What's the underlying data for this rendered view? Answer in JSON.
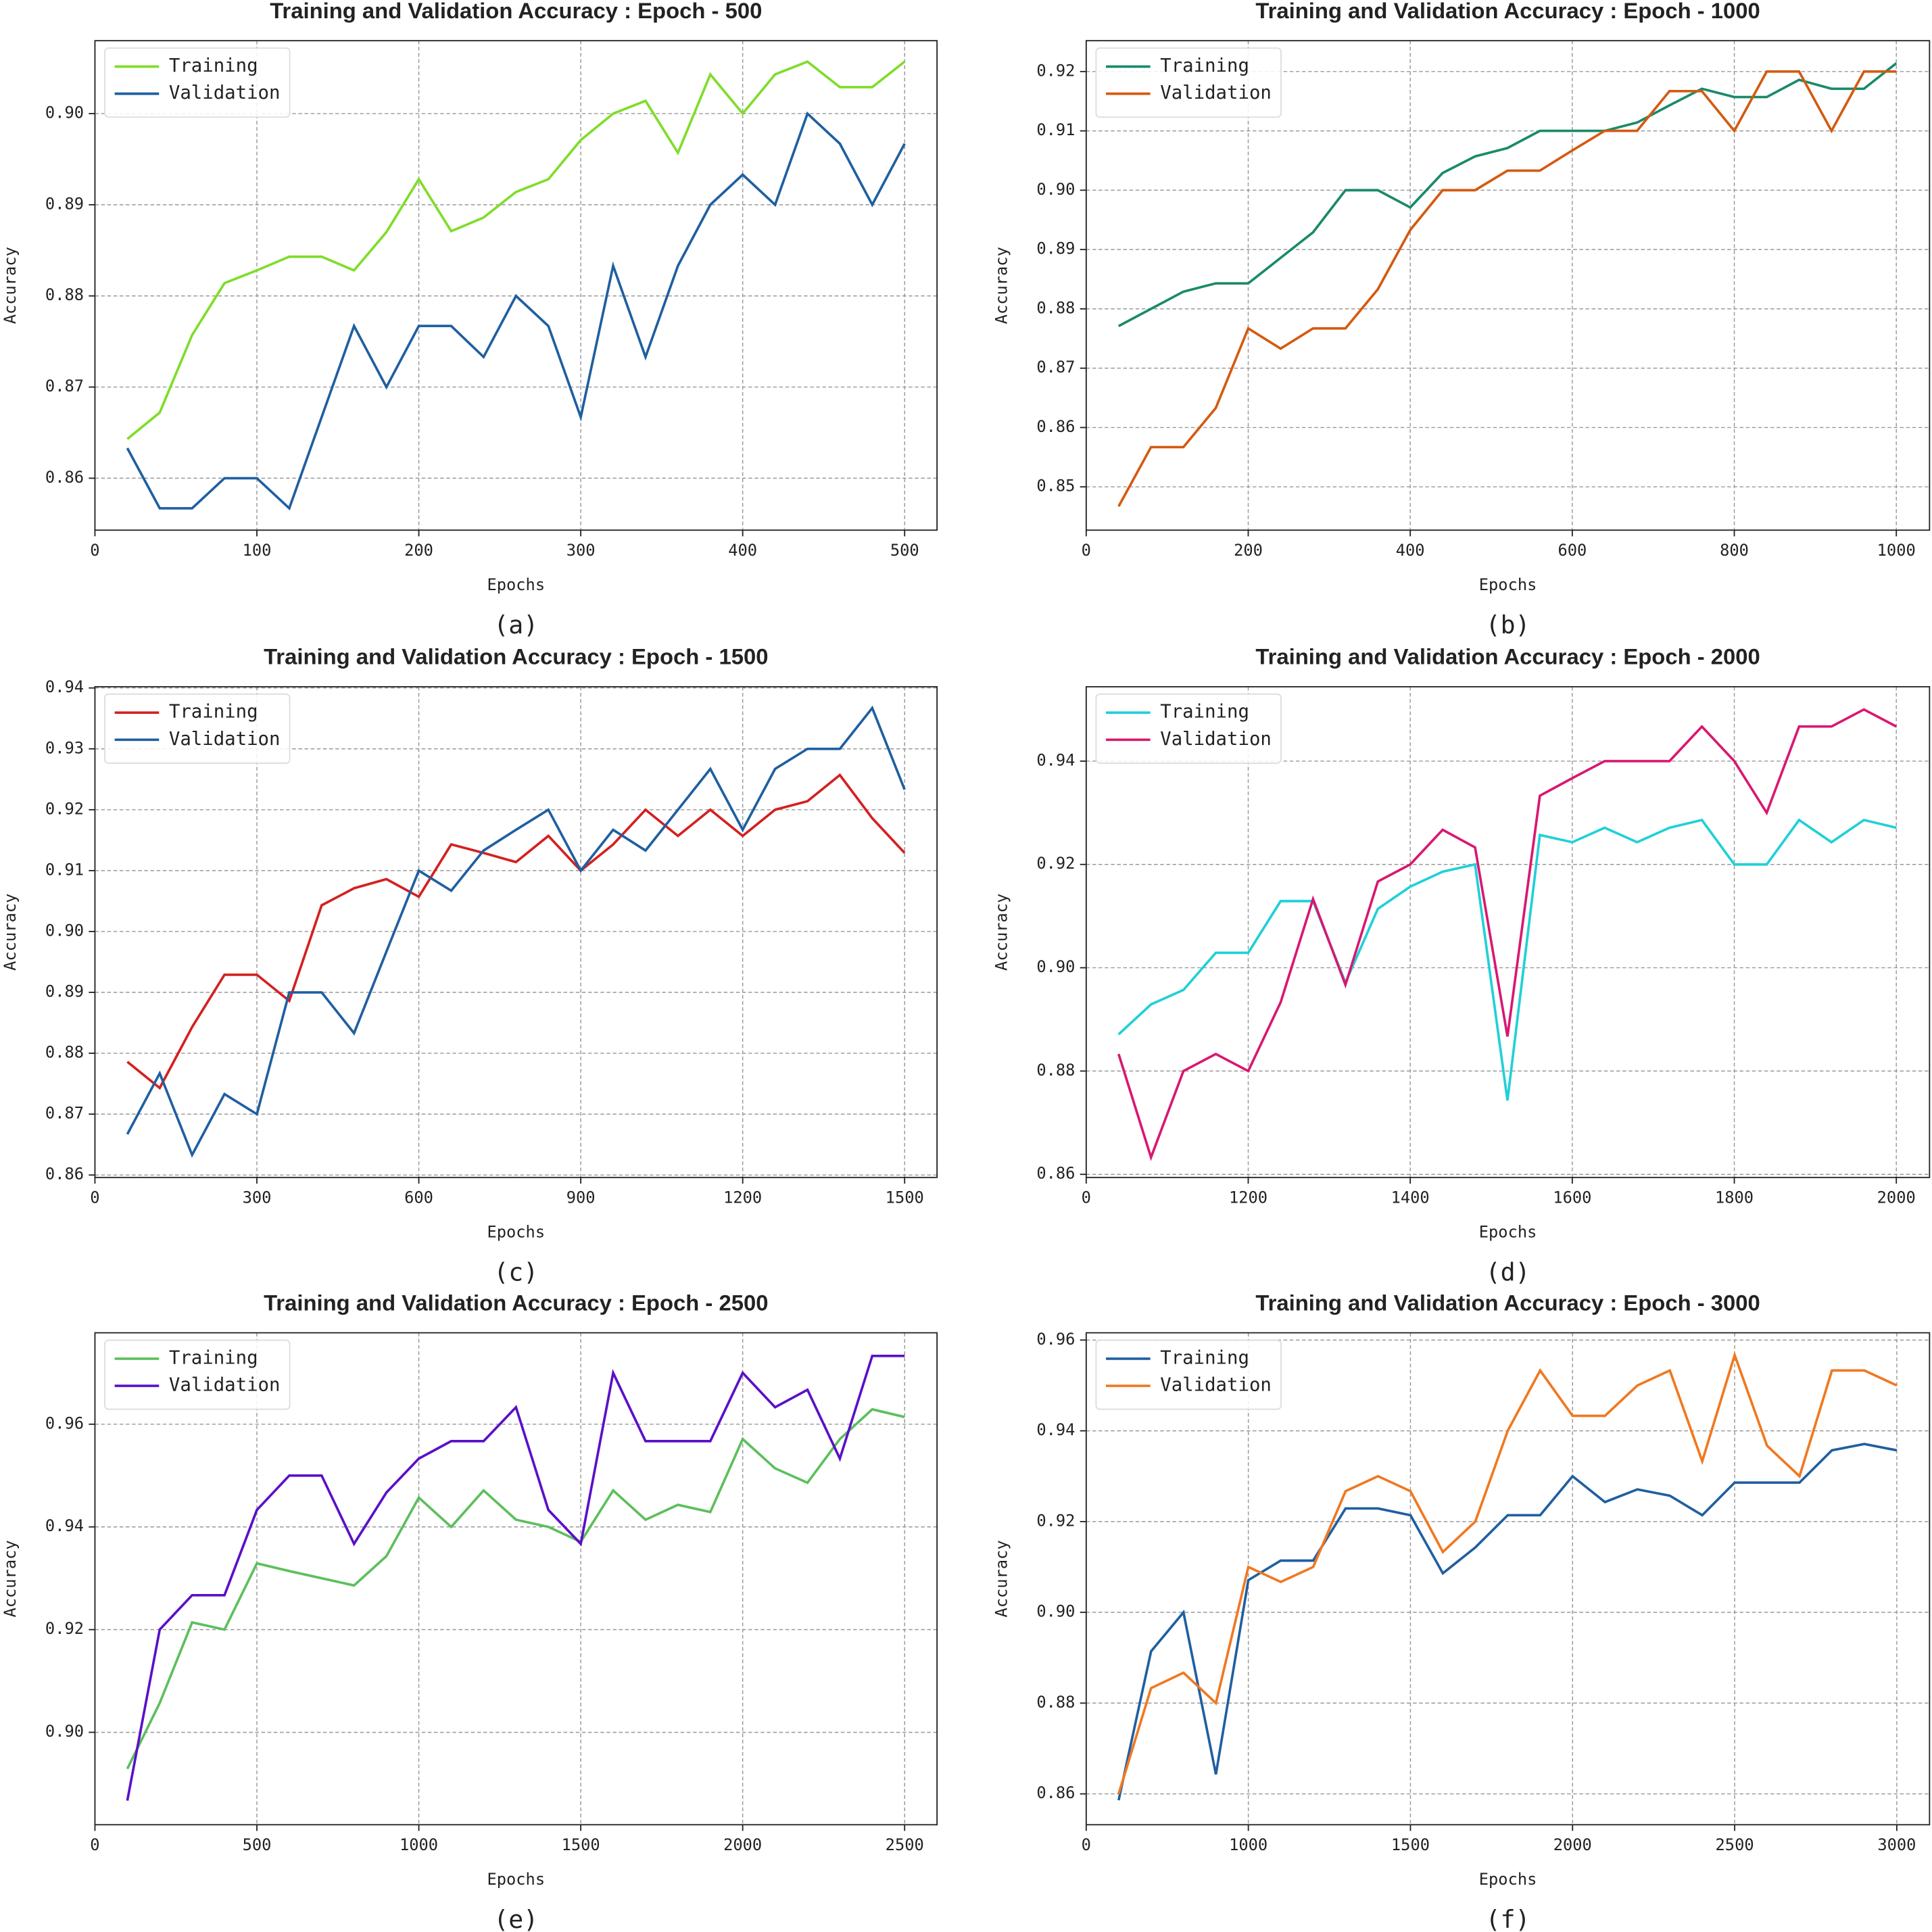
{
  "chart_data": [
    {
      "type": "line",
      "title": "Training and Validation Accuracy : Epoch - 500",
      "caption": "(a)",
      "xlabel": "Epochs",
      "ylabel": "Accuracy",
      "legend": "upper left",
      "grid": true,
      "x": [
        20,
        40,
        60,
        80,
        100,
        120,
        140,
        160,
        180,
        200,
        220,
        240,
        260,
        280,
        300,
        320,
        340,
        360,
        380,
        400,
        420,
        440,
        460,
        480,
        500
      ],
      "xlim": [
        0,
        520
      ],
      "xticks": [
        0,
        100,
        200,
        300,
        400,
        500
      ],
      "ylim": [
        0.8543,
        0.908
      ],
      "yticks": [
        0.86,
        0.87,
        0.88,
        0.89,
        {
          "value": 0.9,
          "label": "0.90"
        }
      ],
      "series": [
        {
          "name": "Training",
          "color": "#7fdd2a",
          "values": [
            0.8643,
            0.8672,
            0.8757,
            0.8814,
            0.8828,
            0.8843,
            0.8843,
            0.8828,
            0.887,
            0.8928,
            0.8871,
            0.8886,
            0.8914,
            0.8928,
            0.8971,
            0.9,
            0.9014,
            0.8957,
            0.9043,
            0.9,
            0.9043,
            0.9057,
            0.9029,
            0.9029,
            0.9057
          ]
        },
        {
          "name": "Validation",
          "color": "#1f5fa0",
          "values": [
            0.8633,
            0.8567,
            0.8567,
            0.86,
            0.86,
            0.8567,
            0.8667,
            0.8767,
            0.87,
            0.8767,
            0.8767,
            0.8733,
            0.88,
            0.8767,
            0.8667,
            0.8833,
            0.8733,
            0.8833,
            0.89,
            0.8933,
            0.89,
            0.9,
            0.8967,
            0.89,
            0.8967
          ]
        }
      ]
    },
    {
      "type": "line",
      "title": "Training and Validation Accuracy : Epoch - 1000",
      "caption": "(b)",
      "xlabel": "Epochs",
      "ylabel": "Accuracy",
      "legend": "upper left",
      "grid": true,
      "x": [
        40,
        80,
        120,
        160,
        200,
        240,
        280,
        320,
        360,
        400,
        440,
        480,
        520,
        560,
        600,
        640,
        680,
        720,
        760,
        800,
        840,
        880,
        920,
        960,
        1000
      ],
      "xlim": [
        0,
        1041
      ],
      "xticks": [
        0,
        200,
        400,
        600,
        800,
        1000
      ],
      "ylim": [
        0.8427,
        0.9252
      ],
      "yticks": [
        0.85,
        0.86,
        0.87,
        0.88,
        0.89,
        {
          "value": 0.9,
          "label": "0.90"
        },
        0.91,
        0.92
      ],
      "series": [
        {
          "name": "Training",
          "color": "#1a8a6a",
          "values": [
            0.8771,
            0.88,
            0.8829,
            0.8843,
            0.8843,
            0.8886,
            0.8929,
            0.9,
            0.9,
            0.8971,
            0.9029,
            0.9057,
            0.9071,
            0.91,
            0.91,
            0.91,
            0.9114,
            0.9143,
            0.9171,
            0.9157,
            0.9157,
            0.9186,
            0.9171,
            0.9171,
            0.9214
          ]
        },
        {
          "name": "Validation",
          "color": "#d45a10",
          "values": [
            0.8467,
            0.8567,
            0.8567,
            0.8633,
            0.8767,
            0.8733,
            0.8767,
            0.8767,
            0.8833,
            0.8933,
            0.9,
            0.9,
            0.9033,
            0.9033,
            0.9067,
            0.91,
            0.91,
            0.9167,
            0.9167,
            0.91,
            0.92,
            0.92,
            0.91,
            0.92,
            0.92
          ]
        }
      ]
    },
    {
      "type": "line",
      "title": "Training and Validation Accuracy : Epoch - 1500",
      "caption": "(c)",
      "xlabel": "Epochs",
      "ylabel": "Accuracy",
      "legend": "upper left",
      "grid": true,
      "x": [
        60,
        120,
        180,
        240,
        300,
        360,
        420,
        480,
        540,
        600,
        660,
        720,
        780,
        840,
        900,
        960,
        1020,
        1080,
        1140,
        1200,
        1260,
        1320,
        1380,
        1440,
        1500
      ],
      "xlim": [
        0,
        1560
      ],
      "xticks": [
        0,
        300,
        600,
        900,
        1200,
        1500
      ],
      "ylim": [
        0.8596,
        0.9402
      ],
      "yticks": [
        0.86,
        0.87,
        0.88,
        0.89,
        {
          "value": 0.9,
          "label": "0.90"
        },
        0.91,
        0.92,
        0.93,
        0.94
      ],
      "series": [
        {
          "name": "Training",
          "color": "#d42020",
          "values": [
            0.8786,
            0.8743,
            0.8843,
            0.8929,
            0.8929,
            0.8886,
            0.9043,
            0.9071,
            0.9086,
            0.9057,
            0.9143,
            0.9129,
            0.9114,
            0.9157,
            0.91,
            0.9143,
            0.92,
            0.9157,
            0.92,
            0.9157,
            0.92,
            0.9214,
            0.9257,
            0.9186,
            0.9129
          ]
        },
        {
          "name": "Validation",
          "color": "#1f5fa0",
          "values": [
            0.8667,
            0.8767,
            0.8633,
            0.8733,
            0.87,
            0.89,
            0.89,
            0.8833,
            0.8967,
            0.91,
            0.9067,
            0.9133,
            0.9167,
            0.92,
            0.91,
            0.9167,
            0.9133,
            0.92,
            0.9267,
            0.9167,
            0.9267,
            0.93,
            0.93,
            0.9367,
            0.9233
          ]
        }
      ]
    },
    {
      "type": "line",
      "title": "Training and Validation Accuracy : Epoch - 2000",
      "caption": "(d)",
      "xlabel": "Epochs",
      "ylabel": "Accuracy",
      "legend": "upper left",
      "grid": true,
      "x": [
        1040,
        1080,
        1120,
        1160,
        1200,
        1240,
        1280,
        1320,
        1360,
        1400,
        1440,
        1480,
        1520,
        1560,
        1600,
        1640,
        1680,
        1720,
        1760,
        1800,
        1840,
        1880,
        1920,
        1960,
        2000
      ],
      "xlim": [
        1000,
        2041
      ],
      "xticks": [
        {
          "value": 1000,
          "label": "0"
        },
        1200,
        1400,
        1600,
        1800,
        2000
      ],
      "ylim": [
        0.8594,
        0.9544
      ],
      "yticks": [
        0.86,
        0.88,
        {
          "value": 0.9,
          "label": "0.90"
        },
        0.92,
        0.94
      ],
      "series": [
        {
          "name": "Training",
          "color": "#20d0d8",
          "values": [
            0.8871,
            0.8929,
            0.8957,
            0.9029,
            0.9029,
            0.9129,
            0.9129,
            0.8971,
            0.9114,
            0.9157,
            0.9186,
            0.92,
            0.8743,
            0.9257,
            0.9243,
            0.9271,
            0.9243,
            0.9271,
            0.9286,
            0.92,
            0.92,
            0.9286,
            0.9243,
            0.9286,
            0.9271
          ]
        },
        {
          "name": "Validation",
          "color": "#d81870",
          "values": [
            0.8833,
            0.8633,
            0.88,
            0.8833,
            0.88,
            0.8933,
            0.9133,
            0.8967,
            0.9167,
            0.92,
            0.9267,
            0.9233,
            0.8867,
            0.9333,
            0.9367,
            0.94,
            0.94,
            0.94,
            0.9467,
            0.94,
            0.93,
            0.9467,
            0.9467,
            0.95,
            0.9467
          ]
        }
      ]
    },
    {
      "type": "line",
      "title": "Training and Validation Accuracy : Epoch - 2500",
      "caption": "(e)",
      "xlabel": "Epochs",
      "ylabel": "Accuracy",
      "legend": "upper left",
      "grid": true,
      "x": [
        100,
        200,
        300,
        400,
        500,
        600,
        700,
        800,
        900,
        1000,
        1100,
        1200,
        1300,
        1400,
        1500,
        1600,
        1700,
        1800,
        1900,
        2000,
        2100,
        2200,
        2300,
        2400,
        2500
      ],
      "xlim": [
        0,
        2600
      ],
      "xticks": [
        0,
        500,
        1000,
        1500,
        2000,
        2500
      ],
      "ylim": [
        0.882,
        0.9778
      ],
      "yticks": [
        {
          "value": 0.9,
          "label": "0.90"
        },
        0.92,
        0.94,
        0.96
      ],
      "series": [
        {
          "name": "Training",
          "color": "#5cbf5c",
          "values": [
            0.8929,
            0.9057,
            0.9214,
            0.92,
            0.9329,
            0.9314,
            0.93,
            0.9286,
            0.9343,
            0.9457,
            0.94,
            0.9471,
            0.9414,
            0.94,
            0.9371,
            0.9471,
            0.9414,
            0.9443,
            0.9429,
            0.9571,
            0.9514,
            0.9486,
            0.9571,
            0.9629,
            0.9614
          ]
        },
        {
          "name": "Validation",
          "color": "#5a10c8",
          "values": [
            0.8867,
            0.92,
            0.9267,
            0.9267,
            0.9433,
            0.95,
            0.95,
            0.9367,
            0.9467,
            0.9533,
            0.9567,
            0.9567,
            0.9633,
            0.9433,
            0.9367,
            0.97,
            0.9567,
            0.9567,
            0.9567,
            0.97,
            0.9633,
            0.9667,
            0.9533,
            0.9733,
            0.9733
          ]
        }
      ]
    },
    {
      "type": "line",
      "title": "Training and Validation Accuracy : Epoch - 3000",
      "caption": "(f)",
      "xlabel": "Epochs",
      "ylabel": "Accuracy",
      "legend": "upper left",
      "grid": true,
      "x": [
        600,
        700,
        800,
        900,
        1000,
        1100,
        1200,
        1300,
        1400,
        1500,
        1600,
        1700,
        1800,
        1900,
        2000,
        2100,
        2200,
        2300,
        2400,
        2500,
        2600,
        2700,
        2800,
        2900,
        3000
      ],
      "xlim": [
        500,
        3101
      ],
      "xticks": [
        {
          "value": 500,
          "label": "0"
        },
        1000,
        1500,
        2000,
        2500,
        3000
      ],
      "ylim": [
        0.8532,
        0.9616
      ],
      "yticks": [
        0.86,
        0.88,
        {
          "value": 0.9,
          "label": "0.90"
        },
        0.92,
        0.94,
        0.96
      ],
      "series": [
        {
          "name": "Training",
          "color": "#1f5fa0",
          "values": [
            0.8586,
            0.8914,
            0.9,
            0.8643,
            0.9071,
            0.9114,
            0.9114,
            0.9229,
            0.9229,
            0.9214,
            0.9086,
            0.9143,
            0.9214,
            0.9214,
            0.93,
            0.9243,
            0.9271,
            0.9257,
            0.9214,
            0.9286,
            0.9286,
            0.9286,
            0.9357,
            0.9371,
            0.9357
          ]
        },
        {
          "name": "Validation",
          "color": "#f07820",
          "values": [
            0.86,
            0.8833,
            0.8867,
            0.88,
            0.91,
            0.9067,
            0.91,
            0.9267,
            0.93,
            0.9267,
            0.9133,
            0.92,
            0.94,
            0.9533,
            0.9433,
            0.9433,
            0.95,
            0.9533,
            0.9333,
            0.9567,
            0.9367,
            0.93,
            0.9533,
            0.9533,
            0.95
          ]
        }
      ]
    }
  ]
}
